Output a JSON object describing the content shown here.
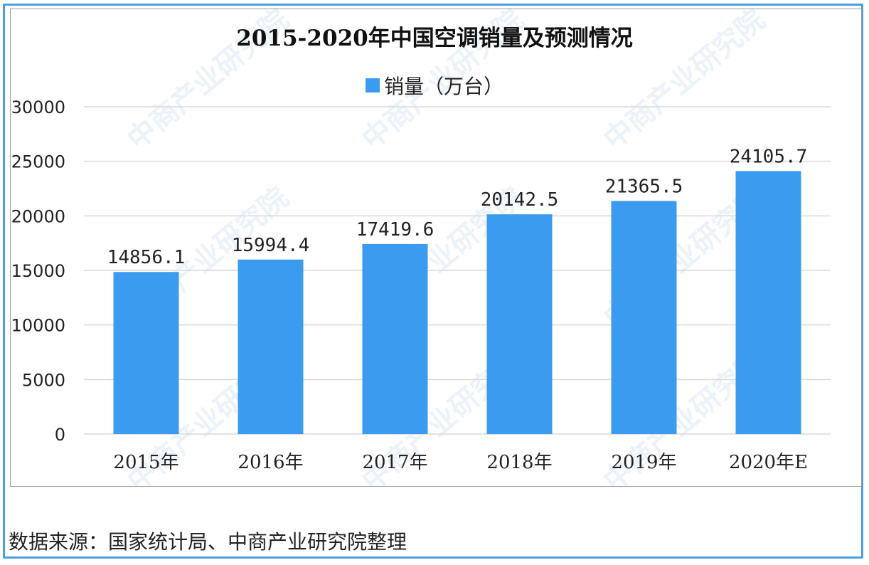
{
  "chart_data": {
    "type": "bar",
    "title": "2015-2020年中国空调销量及预测情况",
    "legend": [
      "销量（万台）"
    ],
    "legend_placement": "top",
    "categories": [
      "2015年",
      "2016年",
      "2017年",
      "2018年",
      "2019年",
      "2020年E"
    ],
    "series": [
      {
        "name": "销量（万台）",
        "values": [
          14856.1,
          15994.4,
          17419.6,
          20142.5,
          21365.5,
          24105.7
        ]
      }
    ],
    "data_labels": [
      "14856.1",
      "15994.4",
      "17419.6",
      "20142.5",
      "21365.5",
      "24105.7"
    ],
    "yticks": [
      "0",
      "5000",
      "10000",
      "15000",
      "20000",
      "25000",
      "30000"
    ],
    "ylim": [
      0,
      30000
    ],
    "grid": true,
    "xlabel": "",
    "ylabel": "",
    "bar_color": "#3b9bef"
  },
  "source": "数据来源：国家统计局、中商产业研究院整理",
  "watermark": "中商产业研究院"
}
